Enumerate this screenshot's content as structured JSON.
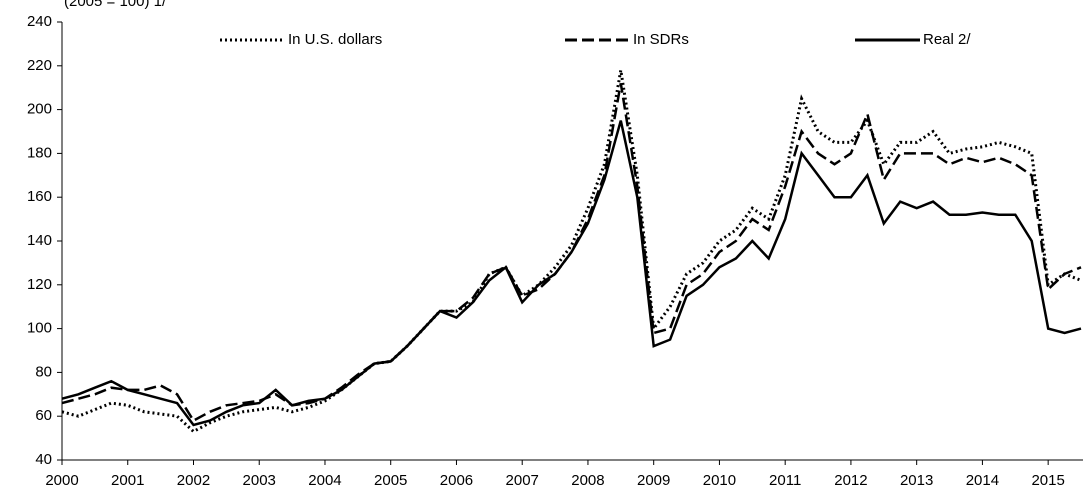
{
  "chart_data": {
    "type": "line",
    "subtitle": "(2005 = 100) 1/",
    "x": [
      2000,
      2000.25,
      2000.5,
      2000.75,
      2001,
      2001.25,
      2001.5,
      2001.75,
      2002,
      2002.25,
      2002.5,
      2002.75,
      2003,
      2003.25,
      2003.5,
      2003.75,
      2004,
      2004.25,
      2004.5,
      2004.75,
      2005,
      2005.25,
      2005.5,
      2005.75,
      2006,
      2006.25,
      2006.5,
      2006.75,
      2007,
      2007.25,
      2007.5,
      2007.75,
      2008,
      2008.25,
      2008.5,
      2008.75,
      2009,
      2009.25,
      2009.5,
      2009.75,
      2010,
      2010.25,
      2010.5,
      2010.75,
      2011,
      2011.25,
      2011.5,
      2011.75,
      2012,
      2012.25,
      2012.5,
      2012.75,
      2013,
      2013.25,
      2013.5,
      2013.75,
      2014,
      2014.25,
      2014.5,
      2014.75,
      2015,
      2015.25,
      2015.5
    ],
    "series": [
      {
        "name": "In U.S. dollars",
        "color": "#000000",
        "dash": "2,3",
        "values": [
          62,
          60,
          63,
          66,
          65,
          62,
          61,
          60,
          53,
          57,
          60,
          62,
          63,
          64,
          62,
          64,
          67,
          72,
          78,
          84,
          85,
          92,
          100,
          108,
          108,
          112,
          125,
          128,
          115,
          120,
          128,
          138,
          155,
          175,
          218,
          170,
          100,
          110,
          125,
          130,
          140,
          145,
          155,
          150,
          170,
          205,
          190,
          185,
          185,
          195,
          175,
          185,
          185,
          190,
          180,
          182,
          183,
          185,
          183,
          180,
          120,
          125,
          122
        ]
      },
      {
        "name": "In SDRs",
        "color": "#000000",
        "dash": "12,5",
        "values": [
          66,
          68,
          70,
          73,
          72,
          72,
          74,
          70,
          58,
          62,
          65,
          66,
          67,
          70,
          65,
          66,
          68,
          73,
          79,
          84,
          85,
          92,
          100,
          108,
          108,
          114,
          125,
          128,
          115,
          118,
          125,
          135,
          150,
          170,
          212,
          165,
          98,
          100,
          120,
          125,
          135,
          140,
          150,
          145,
          165,
          190,
          180,
          175,
          180,
          198,
          168,
          180,
          180,
          180,
          175,
          178,
          176,
          178,
          175,
          170,
          118,
          125,
          128
        ]
      },
      {
        "name": "Real 2/",
        "color": "#000000",
        "dash": "none",
        "values": [
          68,
          70,
          73,
          76,
          72,
          70,
          68,
          66,
          56,
          58,
          62,
          65,
          66,
          72,
          65,
          67,
          68,
          72,
          78,
          84,
          85,
          92,
          100,
          108,
          105,
          112,
          122,
          128,
          112,
          120,
          125,
          135,
          148,
          168,
          195,
          160,
          92,
          95,
          115,
          120,
          128,
          132,
          140,
          132,
          150,
          180,
          170,
          160,
          160,
          170,
          148,
          158,
          155,
          158,
          152,
          152,
          153,
          152,
          152,
          140,
          100,
          98,
          100
        ]
      }
    ],
    "xlim": [
      2000,
      2015.53
    ],
    "xticks": [
      2000,
      2001,
      2002,
      2003,
      2004,
      2005,
      2006,
      2007,
      2008,
      2009,
      2010,
      2011,
      2012,
      2013,
      2014,
      2015
    ],
    "ylim": [
      40,
      240
    ],
    "yticks": [
      40,
      60,
      80,
      100,
      120,
      140,
      160,
      180,
      200,
      220,
      240
    ]
  }
}
